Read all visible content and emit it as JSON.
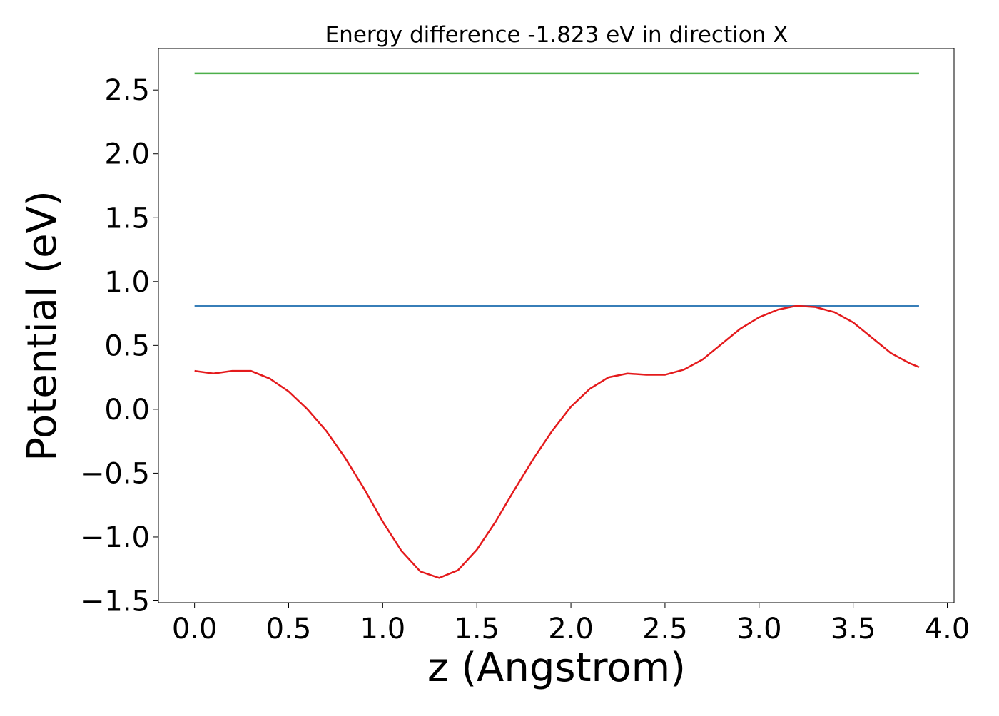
{
  "chart_data": {
    "type": "line",
    "title": "Energy difference -1.823 eV in direction X",
    "x_label": "z (Angstrom)",
    "y_label": "Potential (eV)",
    "xlim": [
      -0.192,
      4.036
    ],
    "ylim": [
      -1.514,
      2.825
    ],
    "xticks": [
      {
        "value": 0,
        "label": "0.0"
      },
      {
        "value": 0.5,
        "label": "0.5"
      },
      {
        "value": 1,
        "label": "1.0"
      },
      {
        "value": 1.5,
        "label": "1.5"
      },
      {
        "value": 2,
        "label": "2.0"
      },
      {
        "value": 2.5,
        "label": "2.5"
      },
      {
        "value": 3,
        "label": "3.0"
      },
      {
        "value": 3.5,
        "label": "3.5"
      },
      {
        "value": 4,
        "label": "4.0"
      }
    ],
    "yticks": [
      {
        "value": -1.5,
        "label": "−1.5"
      },
      {
        "value": -1,
        "label": "−1.0"
      },
      {
        "value": -0.5,
        "label": "−0.5"
      },
      {
        "value": 0,
        "label": "0.0"
      },
      {
        "value": 0.5,
        "label": "0.5"
      },
      {
        "value": 1,
        "label": "1.0"
      },
      {
        "value": 1.5,
        "label": "1.5"
      },
      {
        "value": 2,
        "label": "2.0"
      },
      {
        "value": 2.5,
        "label": "2.5"
      }
    ],
    "series": [
      {
        "color": "#4daf4a",
        "x": [
          0,
          3.85
        ],
        "values": [
          2.63,
          2.63
        ]
      },
      {
        "color": "#377eb8",
        "x": [
          0,
          3.85
        ],
        "values": [
          0.81,
          0.81
        ]
      },
      {
        "color": "#e41a1c",
        "x": [
          0,
          0.1,
          0.2,
          0.3,
          0.4,
          0.5,
          0.6,
          0.7,
          0.8,
          0.9,
          1.0,
          1.1,
          1.2,
          1.3,
          1.4,
          1.5,
          1.6,
          1.7,
          1.8,
          1.9,
          2.0,
          2.1,
          2.2,
          2.3,
          2.4,
          2.5,
          2.6,
          2.7,
          2.8,
          2.9,
          3.0,
          3.1,
          3.2,
          3.3,
          3.4,
          3.5,
          3.6,
          3.7,
          3.8,
          3.85
        ],
        "values": [
          0.3,
          0.28,
          0.3,
          0.3,
          0.24,
          0.14,
          0.0,
          -0.17,
          -0.38,
          -0.62,
          -0.88,
          -1.11,
          -1.27,
          -1.32,
          -1.26,
          -1.1,
          -0.88,
          -0.63,
          -0.39,
          -0.17,
          0.02,
          0.16,
          0.25,
          0.28,
          0.27,
          0.27,
          0.31,
          0.39,
          0.51,
          0.63,
          0.72,
          0.78,
          0.81,
          0.8,
          0.76,
          0.68,
          0.56,
          0.44,
          0.36,
          0.33
        ]
      }
    ]
  }
}
